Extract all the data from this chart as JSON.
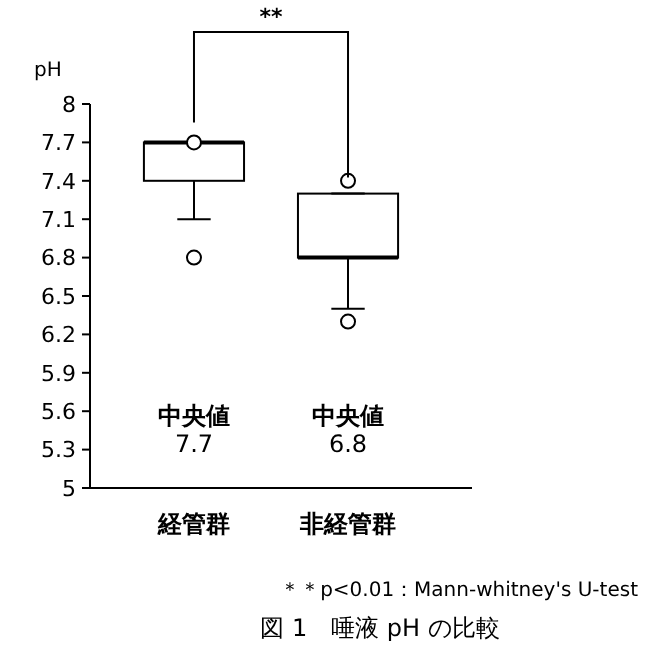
{
  "chart_data": {
    "type": "box",
    "ylabel": "pH",
    "categories": [
      "経管群",
      "非経管群"
    ],
    "boxes": [
      {
        "low": 7.1,
        "q1": 7.4,
        "median": 7.7,
        "q3": 7.7,
        "high": 7.7,
        "outliers": [
          6.8,
          7.7
        ]
      },
      {
        "low": 6.4,
        "q1": 6.8,
        "median": 6.8,
        "q3": 7.3,
        "high": 7.3,
        "outliers": [
          6.3,
          7.4
        ]
      }
    ],
    "ylim": [
      5,
      8
    ],
    "yticks": [
      5,
      5.3,
      5.6,
      5.9,
      6.2,
      6.5,
      6.8,
      7.1,
      7.4,
      7.7,
      8
    ],
    "annotations": [
      "**",
      "中央値\n7.7",
      "中央値\n6.8",
      "＊＊p<0.01：Mann-whitney's U-test",
      "図 1　唾液 pH の比較"
    ],
    "grid": false
  }
}
